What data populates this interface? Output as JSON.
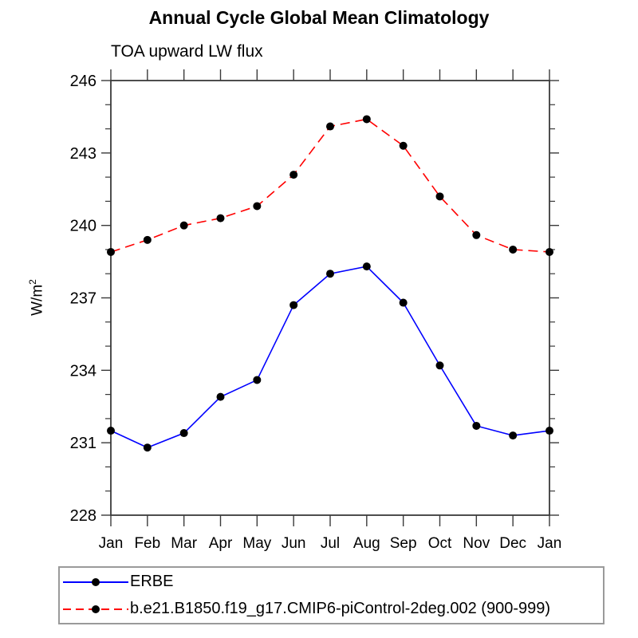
{
  "title": "Annual Cycle Global Mean Climatology",
  "subtitle": "TOA upward LW flux",
  "ylabel": "W/m²",
  "ylabel_base": "W/m",
  "ylabel_sup": "2",
  "colors": {
    "axis": "#3a3a3a",
    "text": "#000000",
    "background": "#ffffff",
    "legend_border": "#9a9a9a",
    "erbe_line": "#0000ff",
    "model_line": "#ff0000",
    "marker": "#000000"
  },
  "chart_data": {
    "type": "line",
    "categories": [
      "Jan",
      "Feb",
      "Mar",
      "Apr",
      "May",
      "Jun",
      "Jul",
      "Aug",
      "Sep",
      "Oct",
      "Nov",
      "Dec",
      "Jan"
    ],
    "xlabel": "",
    "ylabel": "W/m²",
    "ylim": [
      228,
      246
    ],
    "yticks": [
      228,
      231,
      234,
      237,
      240,
      243,
      246
    ],
    "minor_tick_step": 1,
    "grid": false,
    "legend_position": "bottom-left",
    "series": [
      {
        "name": "ERBE",
        "color": "#0000ff",
        "line_style": "solid",
        "marker": "circle",
        "marker_color": "#000000",
        "values": [
          231.5,
          230.8,
          231.4,
          232.9,
          233.6,
          236.7,
          238.0,
          238.3,
          236.8,
          234.2,
          231.7,
          231.3,
          231.5
        ]
      },
      {
        "name": "b.e21.B1850.f19_g17.CMIP6-piControl-2deg.002 (900-999)",
        "color": "#ff0000",
        "line_style": "dashed",
        "marker": "circle",
        "marker_color": "#000000",
        "values": [
          238.9,
          239.4,
          240.0,
          240.3,
          240.8,
          242.1,
          244.1,
          244.4,
          243.3,
          241.2,
          239.6,
          239.0,
          238.9
        ]
      }
    ]
  }
}
